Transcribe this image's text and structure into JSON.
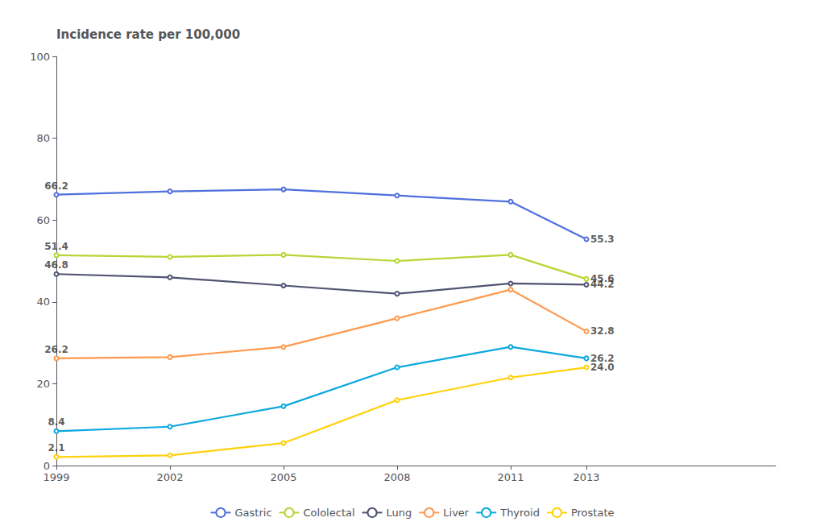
{
  "chart_data": {
    "type": "line",
    "ylabel": "Incidence rate per 100,000",
    "x": [
      1999,
      2002,
      2005,
      2008,
      2011,
      2013
    ],
    "series": [
      {
        "name": "Gastric",
        "values": [
          66.2,
          67.0,
          67.5,
          66.0,
          64.5,
          55.3
        ]
      },
      {
        "name": "Cololectal",
        "values": [
          51.4,
          51.0,
          51.5,
          50.0,
          51.5,
          45.6
        ]
      },
      {
        "name": "Lung",
        "values": [
          46.8,
          46.0,
          44.0,
          42.0,
          44.5,
          44.2
        ]
      },
      {
        "name": "Liver",
        "values": [
          26.2,
          26.5,
          29.0,
          36.0,
          43.0,
          32.8
        ]
      },
      {
        "name": "Thyroid",
        "values": [
          8.4,
          9.5,
          14.5,
          24.0,
          29.0,
          26.2
        ]
      },
      {
        "name": "Prostate",
        "values": [
          2.1,
          2.5,
          5.5,
          16.0,
          21.5,
          24.0
        ]
      }
    ],
    "xlim": [
      1999,
      2018
    ],
    "xticks": [
      1999,
      2002,
      2005,
      2008,
      2011,
      2013
    ],
    "ylim": [
      0,
      100
    ],
    "yticks": [
      0,
      20,
      40,
      60,
      80,
      100
    ],
    "grid": false,
    "legend": "bottom",
    "annotations": [
      {
        "text": "66.2",
        "x": 1999,
        "y": 66.2
      },
      {
        "text": "51.4",
        "x": 1999,
        "y": 51.4
      },
      {
        "text": "46.8",
        "x": 1999,
        "y": 46.8
      },
      {
        "text": "26.2",
        "x": 1999,
        "y": 26.2
      },
      {
        "text": "8.4",
        "x": 1999,
        "y": 8.4
      },
      {
        "text": "2.1",
        "x": 1999,
        "y": 2.1
      },
      {
        "text": "55.3",
        "x": 2013,
        "y": 55.3
      },
      {
        "text": "45.6",
        "x": 2013,
        "y": 45.6
      },
      {
        "text": "44.2",
        "x": 2013,
        "y": 44.2
      },
      {
        "text": "32.8",
        "x": 2013,
        "y": 32.8
      },
      {
        "text": "26.2",
        "x": 2013,
        "y": 26.2
      },
      {
        "text": "24.0",
        "x": 2013,
        "y": 24.0
      }
    ]
  }
}
